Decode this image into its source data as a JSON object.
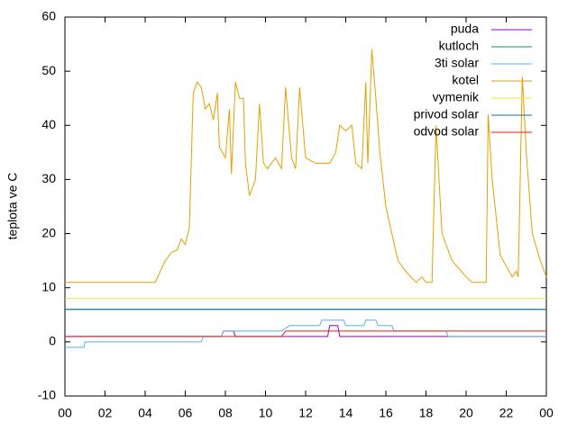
{
  "chart_data": {
    "type": "line",
    "ylabel": "teplota ve C",
    "xlim": [
      0,
      24
    ],
    "xticks": [
      {
        "value": 0,
        "label": "00"
      },
      {
        "value": 2,
        "label": "02"
      },
      {
        "value": 4,
        "label": "04"
      },
      {
        "value": 6,
        "label": "06"
      },
      {
        "value": 8,
        "label": "08"
      },
      10,
      12,
      14,
      16,
      18,
      20,
      22,
      {
        "value": 24,
        "label": "00"
      }
    ],
    "ylim": [
      -10,
      60
    ],
    "yticks": [
      -10,
      0,
      10,
      20,
      30,
      40,
      50,
      60
    ],
    "legend": "top-right",
    "series": [
      {
        "name": "puda",
        "color": "#9400d3",
        "x": [
          0,
          7.8,
          7.9,
          8.4,
          8.5,
          13.1,
          13.2,
          13.6,
          13.7,
          24
        ],
        "values": [
          1,
          1,
          2,
          2,
          1,
          1,
          3,
          3,
          1,
          1
        ]
      },
      {
        "name": "kutloch",
        "color": "#009e73",
        "x": [
          0,
          24
        ],
        "values": [
          6,
          6
        ]
      },
      {
        "name": "3ti solar",
        "color": "#56b4e9",
        "x": [
          0,
          0.95,
          1,
          6.8,
          6.9,
          7.8,
          7.9,
          10.8,
          11.2,
          12.7,
          12.8,
          13.9,
          14,
          14.9,
          15,
          15.5,
          15.6,
          16.3,
          16.4,
          19,
          19.1,
          24
        ],
        "values": [
          -1,
          -1,
          0,
          0,
          1,
          1,
          2,
          2,
          3,
          3,
          4,
          4,
          3,
          3,
          4,
          4,
          3,
          3,
          2,
          2,
          1,
          1
        ]
      },
      {
        "name": "kotel",
        "color": "#e69f00",
        "x": [
          0,
          4.5,
          5,
          5.3,
          5.6,
          5.8,
          6,
          6.2,
          6.4,
          6.6,
          6.8,
          7,
          7.2,
          7.4,
          7.6,
          7.7,
          8,
          8.2,
          8.3,
          8.5,
          8.7,
          8.9,
          9,
          9.2,
          9.5,
          9.7,
          9.9,
          10.1,
          10.5,
          10.8,
          11,
          11.3,
          11.5,
          11.7,
          12,
          12.5,
          13.2,
          13.5,
          13.7,
          14,
          14.3,
          14.5,
          14.8,
          15,
          15.1,
          15.3,
          15.5,
          15.7,
          16,
          16.3,
          16.6,
          17,
          17.5,
          17.8,
          18,
          18.3,
          18.5,
          18.8,
          19.3,
          20,
          20.3,
          21,
          21.1,
          21.3,
          21.7,
          22,
          22.3,
          22.5,
          22.6,
          22.8,
          23,
          23.3,
          23.7,
          24
        ],
        "values": [
          11,
          11,
          15,
          16.5,
          17,
          19,
          18,
          21,
          46,
          48,
          47,
          43,
          44,
          41,
          46,
          36,
          34,
          43,
          31,
          48,
          45,
          45,
          33,
          27,
          30,
          44,
          33,
          32,
          34,
          32,
          47,
          34,
          32,
          47,
          34,
          33,
          33,
          35,
          40,
          39,
          40,
          33,
          32,
          48,
          33,
          54,
          45,
          35,
          25,
          20,
          15,
          13,
          11,
          12,
          11,
          11,
          40,
          20,
          15,
          12,
          11,
          11,
          42,
          30,
          16,
          14,
          12,
          13,
          12,
          49,
          35,
          20,
          15,
          12
        ]
      },
      {
        "name": "vymenik",
        "color": "#f0e442",
        "x": [
          0,
          24
        ],
        "values": [
          8,
          8
        ]
      },
      {
        "name": "privod solar",
        "color": "#0072b2",
        "x": [
          0,
          24
        ],
        "values": [
          6,
          6
        ]
      },
      {
        "name": "odvod solar",
        "color": "#e51e10",
        "x": [
          0,
          10.8,
          11,
          24
        ],
        "values": [
          1,
          1,
          2,
          2
        ]
      }
    ]
  }
}
